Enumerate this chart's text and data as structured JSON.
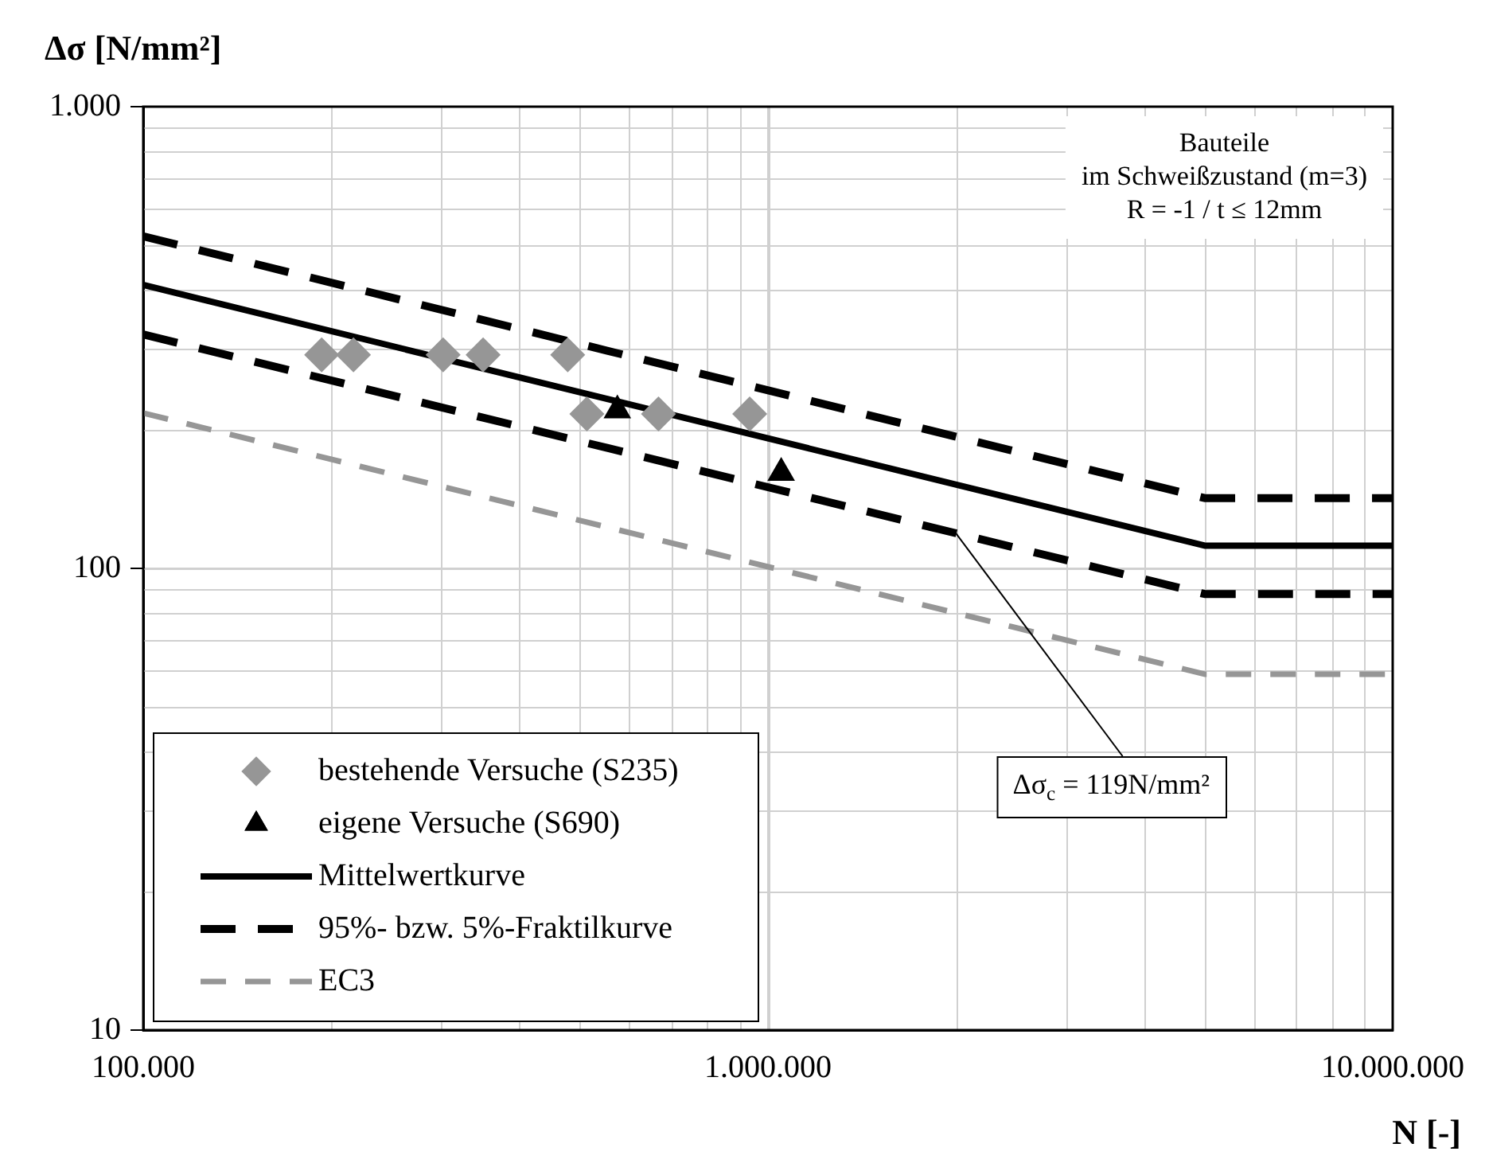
{
  "chart_data": {
    "type": "line",
    "xlabel": "N [-]",
    "ylabel": "Δσ [N/mm²]",
    "log": "xy",
    "grid": true,
    "legend": "bottom left",
    "xlim": [
      100000,
      10000000
    ],
    "xticks": [
      {
        "value": 100000,
        "label": "100.000"
      },
      {
        "value": 1000000,
        "label": "1.000.000"
      },
      {
        "value": 10000000,
        "label": "10.000.000"
      }
    ],
    "ylim": [
      10,
      1000
    ],
    "yticks": [
      10,
      100,
      {
        "value": 1000,
        "label": "1.000"
      }
    ],
    "series": [
      {
        "name": "bestehende Versuche (S235)",
        "type": "scatter",
        "marker": "diamond",
        "color": "#969696",
        "x": [
          193000,
          217000,
          302000,
          350000,
          478000,
          513000,
          668000,
          935000
        ],
        "values": [
          290,
          290,
          290,
          290,
          290,
          216,
          216,
          216
        ]
      },
      {
        "name": "eigene Versuche (S690)",
        "type": "scatter",
        "marker": "triangle",
        "color": "#000000",
        "x": [
          574000,
          1050000
        ],
        "values": [
          220,
          161
        ]
      },
      {
        "name": "Mittelwertkurve",
        "marker": "none",
        "line_style": "solid",
        "color": "#000000",
        "x": [
          100000,
          5000000,
          10000000
        ],
        "values": [
          411,
          112,
          112
        ]
      },
      {
        "name": "95%- bzw. 5%-Fraktilkurve",
        "marker": "none",
        "line_style": "dashed",
        "color": "#000000",
        "x": [
          100000,
          5000000,
          10000000
        ],
        "values": [
          524,
          142,
          142
        ]
      },
      {
        "marker": "none",
        "line_style": "dashed",
        "color": "#000000",
        "x": [
          100000,
          5000000,
          10000000
        ],
        "values": [
          321,
          88,
          88
        ]
      },
      {
        "name": "EC3",
        "marker": "none",
        "line_style": "dashed",
        "color": "#969696",
        "x": [
          100000,
          5000000,
          10000000
        ],
        "values": [
          217,
          59,
          59
        ]
      }
    ],
    "annotations": [
      "Bauteile\nim Schweißzustand (m=3)\nR = -1 / t ≤ 12mm",
      {
        "text": "Δσ$_{c}$ = 119N/mm²",
        "x": 2000000,
        "y": 119
      }
    ]
  }
}
